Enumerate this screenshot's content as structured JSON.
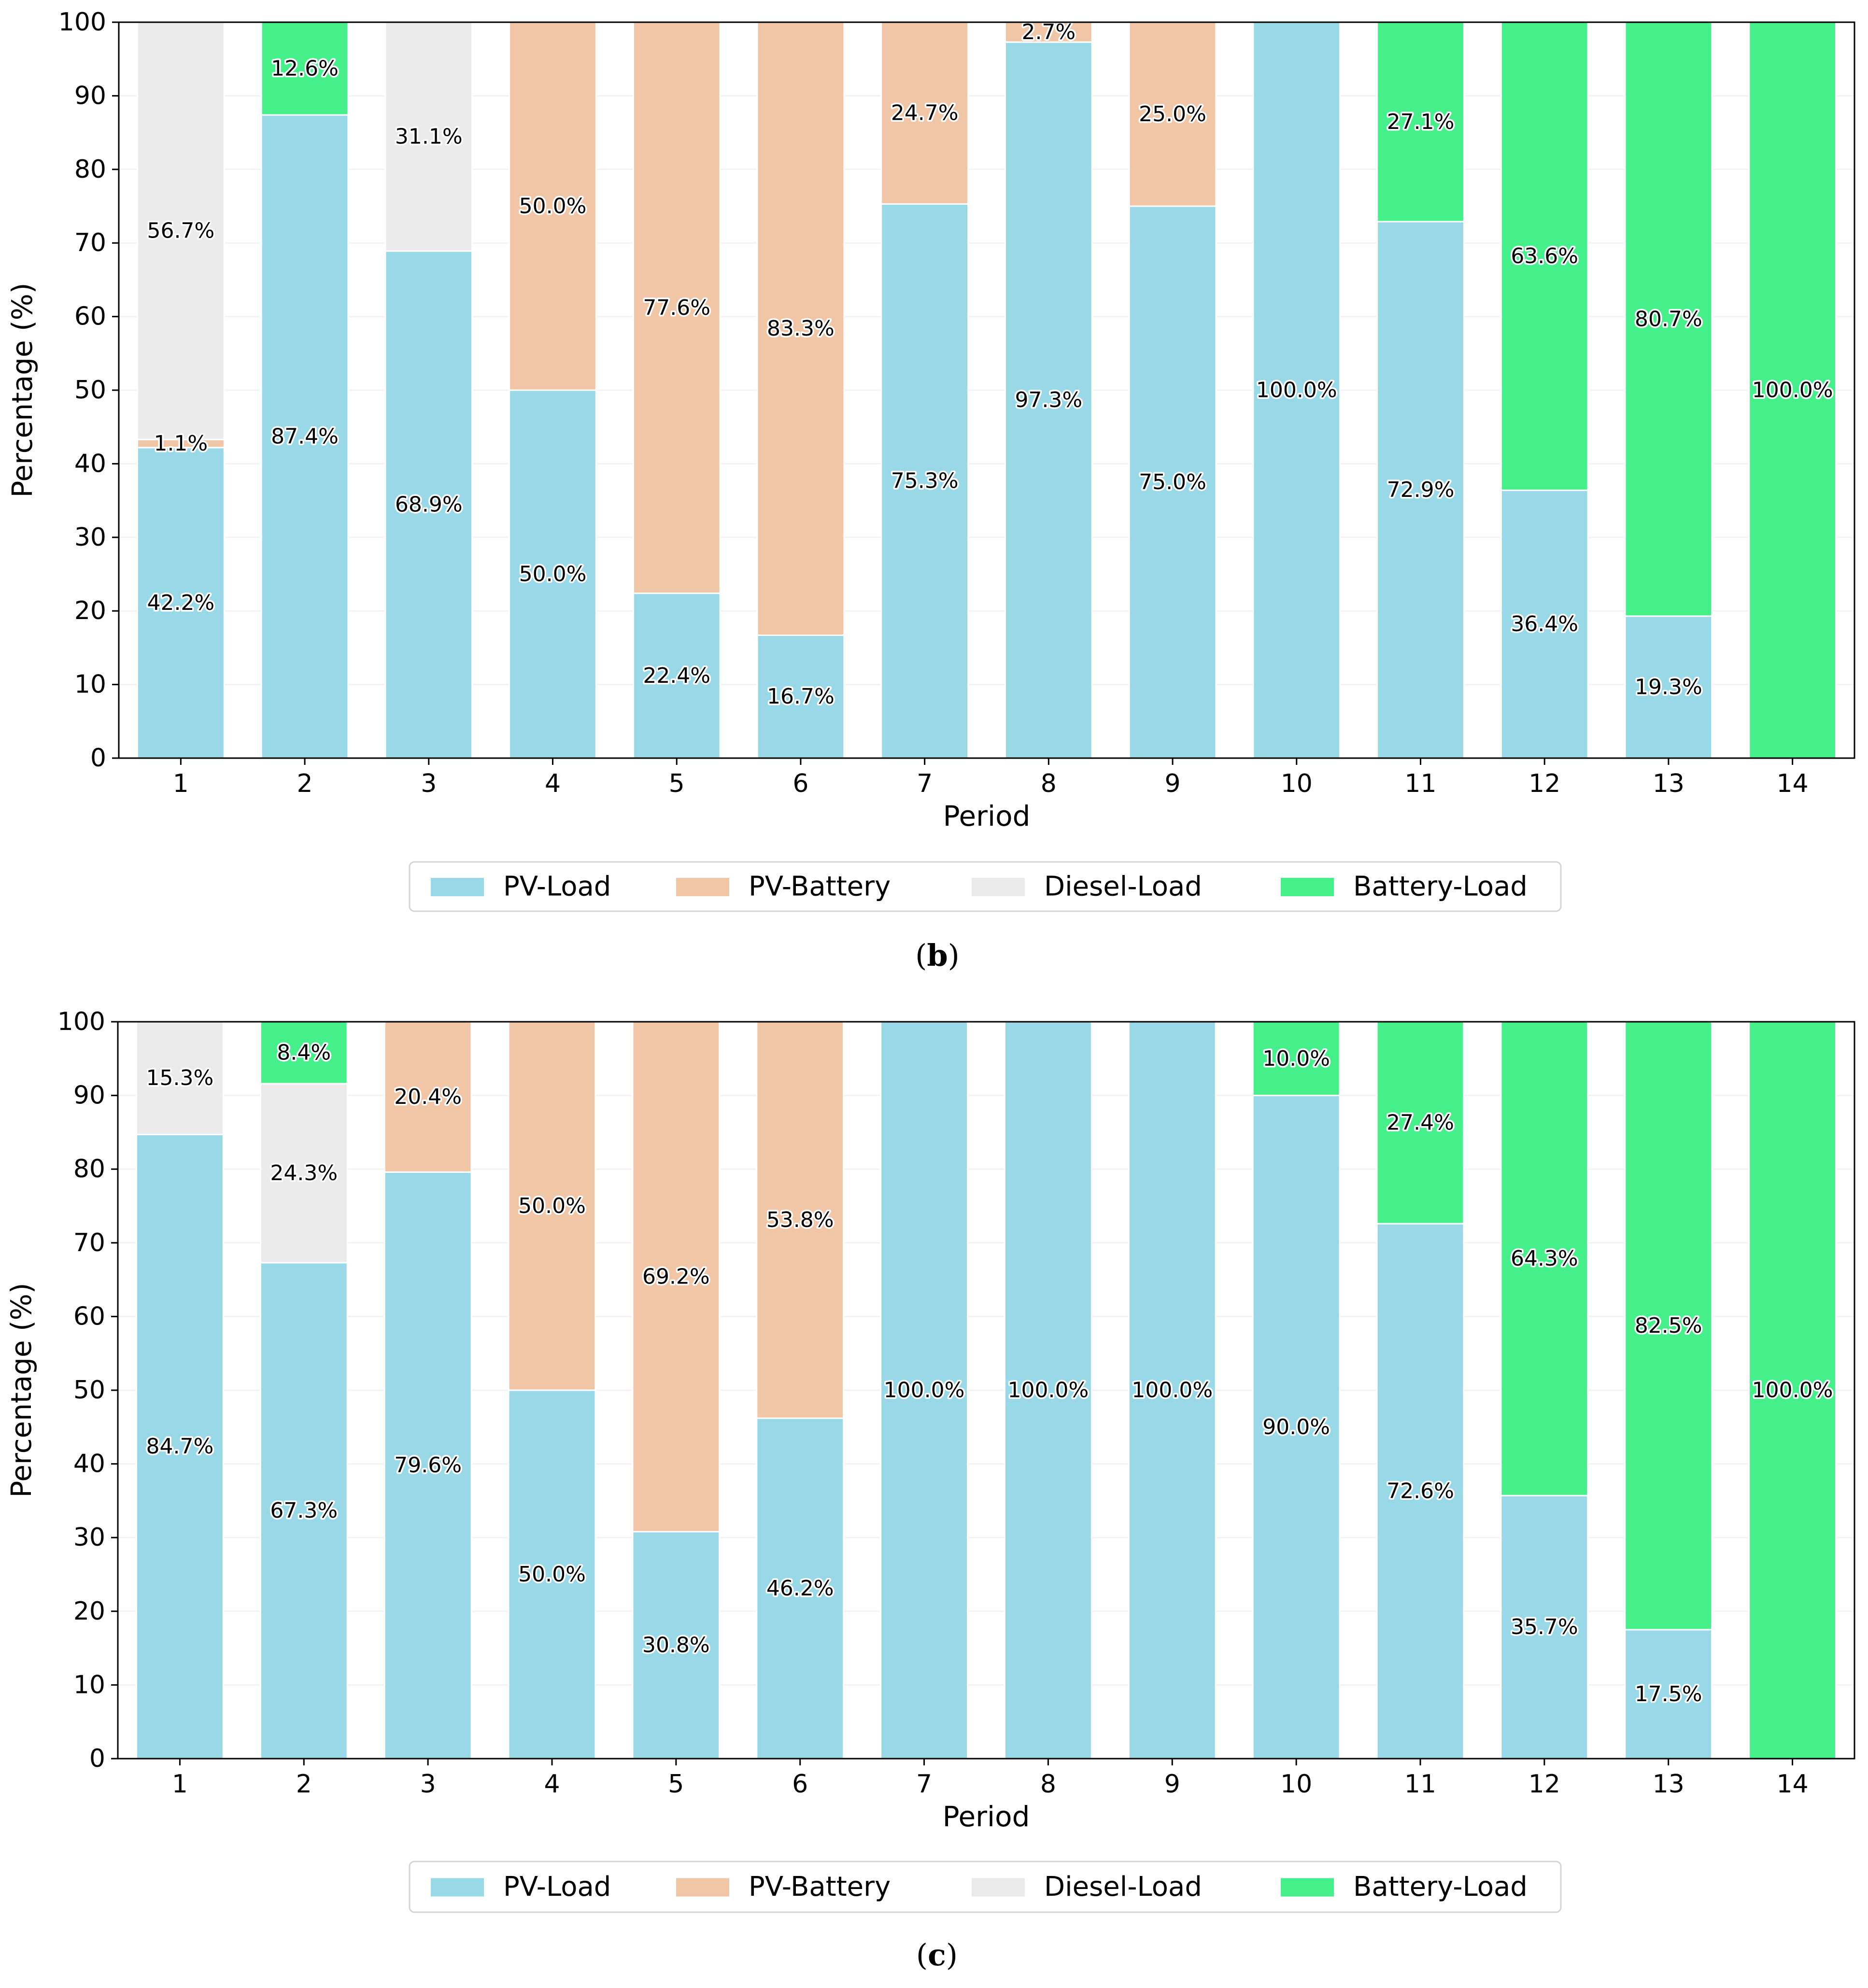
{
  "legend": {
    "series_names": [
      "PV-Load",
      "PV-Battery",
      "Diesel-Load",
      "Battery-Load"
    ]
  },
  "colors": {
    "PV-Load": "#99d8e6",
    "PV-Battery": "#f1c6a6",
    "Diesel-Load": "#ebebeb",
    "Battery-Load": "#45ef89"
  },
  "chart_data": [
    {
      "type": "bar",
      "stacked": true,
      "caption": "(b)",
      "xlabel": "Period",
      "ylabel": "Percentage (%)",
      "ylim": [
        0,
        100
      ],
      "yticks": [
        0,
        10,
        20,
        30,
        40,
        50,
        60,
        70,
        80,
        90,
        100
      ],
      "categories": [
        "1",
        "2",
        "3",
        "4",
        "5",
        "6",
        "7",
        "8",
        "9",
        "10",
        "11",
        "12",
        "13",
        "14"
      ],
      "legend_position": "bottom-center",
      "series": [
        {
          "name": "PV-Load",
          "values": [
            42.2,
            87.4,
            68.9,
            50.0,
            22.4,
            16.7,
            75.3,
            97.3,
            75.0,
            100.0,
            72.9,
            36.4,
            19.3,
            0
          ]
        },
        {
          "name": "PV-Battery",
          "values": [
            1.1,
            0,
            0,
            50.0,
            77.6,
            83.3,
            24.7,
            2.7,
            25.0,
            0,
            0,
            0,
            0,
            0
          ]
        },
        {
          "name": "Diesel-Load",
          "values": [
            56.7,
            0,
            31.1,
            0,
            0,
            0,
            0,
            0,
            0,
            0,
            0,
            0,
            0,
            0
          ]
        },
        {
          "name": "Battery-Load",
          "values": [
            0,
            12.6,
            0,
            0,
            0,
            0,
            0,
            0,
            0,
            0,
            27.1,
            63.6,
            80.7,
            100.0
          ]
        }
      ]
    },
    {
      "type": "bar",
      "stacked": true,
      "caption": "(c)",
      "xlabel": "Period",
      "ylabel": "Percentage (%)",
      "ylim": [
        0,
        100
      ],
      "yticks": [
        0,
        10,
        20,
        30,
        40,
        50,
        60,
        70,
        80,
        90,
        100
      ],
      "categories": [
        "1",
        "2",
        "3",
        "4",
        "5",
        "6",
        "7",
        "8",
        "9",
        "10",
        "11",
        "12",
        "13",
        "14"
      ],
      "legend_position": "bottom-center",
      "series": [
        {
          "name": "PV-Load",
          "values": [
            84.7,
            67.3,
            79.6,
            50.0,
            30.8,
            46.2,
            100.0,
            100.0,
            100.0,
            90.0,
            72.6,
            35.7,
            17.5,
            0
          ]
        },
        {
          "name": "PV-Battery",
          "values": [
            0,
            0,
            20.4,
            50.0,
            69.2,
            53.8,
            0,
            0,
            0,
            0,
            0,
            0,
            0,
            0
          ]
        },
        {
          "name": "Diesel-Load",
          "values": [
            15.3,
            24.3,
            0,
            0,
            0,
            0,
            0,
            0,
            0,
            0,
            0,
            0,
            0,
            0
          ]
        },
        {
          "name": "Battery-Load",
          "values": [
            0,
            8.4,
            0,
            0,
            0,
            0,
            0,
            0,
            0,
            10.0,
            27.4,
            64.3,
            82.5,
            100.0
          ]
        }
      ]
    }
  ]
}
